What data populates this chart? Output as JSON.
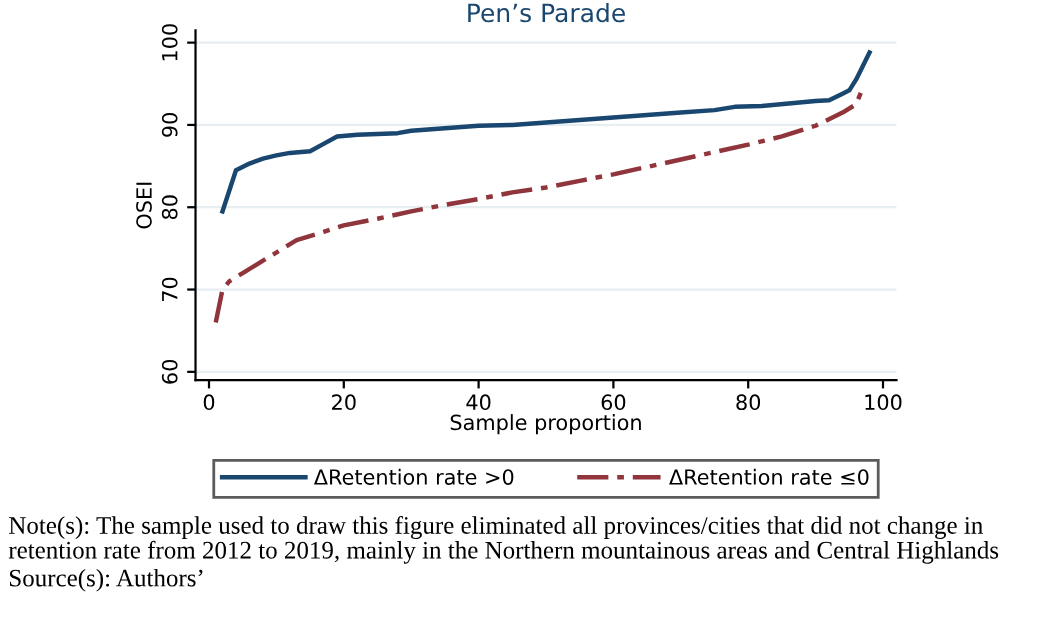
{
  "chart_data": {
    "type": "line",
    "title": "Pen’s Parade",
    "xlabel": "Sample proportion",
    "ylabel": "OSEI",
    "xlim": [
      -2,
      102
    ],
    "ylim": [
      59,
      101.5
    ],
    "xticks": [
      0,
      20,
      40,
      60,
      80,
      100
    ],
    "yticks": [
      60,
      70,
      80,
      90,
      100
    ],
    "grid": "y",
    "legend": "bottom",
    "marker": "none",
    "series": [
      {
        "name": "ΔRetention rate >0",
        "color": "#1a476f",
        "line_style": "solid",
        "x": [
          2,
          4,
          6,
          8,
          10,
          12,
          15,
          17,
          19,
          22,
          25,
          28,
          30,
          35,
          40,
          45,
          50,
          55,
          60,
          65,
          70,
          75,
          78,
          82,
          86,
          90,
          92,
          94,
          95,
          96,
          98
        ],
        "values": [
          79.5,
          84.5,
          85.3,
          85.9,
          86.3,
          86.6,
          86.8,
          87.7,
          88.6,
          88.8,
          88.9,
          89.0,
          89.3,
          89.6,
          89.9,
          90.0,
          90.3,
          90.6,
          90.9,
          91.2,
          91.5,
          91.8,
          92.2,
          92.3,
          92.6,
          92.9,
          93.0,
          93.8,
          94.2,
          95.5,
          98.8
        ]
      },
      {
        "name": "ΔRetention rate ≤0",
        "color": "#90353b",
        "line_style": "dashdot",
        "x": [
          1,
          2,
          3,
          5,
          7,
          9,
          11,
          13,
          17,
          20,
          25,
          30,
          35,
          40,
          45,
          50,
          55,
          60,
          65,
          70,
          75,
          80,
          85,
          90,
          94,
          96,
          97
        ],
        "values": [
          66,
          70,
          71,
          72,
          73,
          74,
          75,
          76,
          77,
          77.8,
          78.6,
          79.5,
          80.3,
          81,
          81.8,
          82.4,
          83.2,
          84,
          84.9,
          85.8,
          86.7,
          87.6,
          88.6,
          89.9,
          91.5,
          92.5,
          94.5
        ]
      }
    ],
    "annotations": [
      "Note(s): The sample used to draw this figure eliminated all provinces/cities that did not change in retention rate from 2012 to 2019, mainly in the Northern mountainous areas and Central Highlands",
      "Source(s): Authors’"
    ]
  }
}
